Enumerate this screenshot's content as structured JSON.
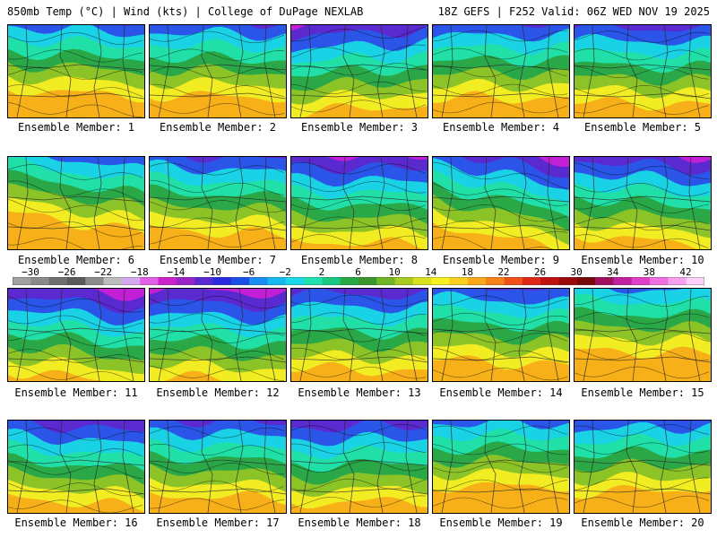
{
  "header": {
    "left": "850mb Temp (°C) | Wind (kts) | College of DuPage NEXLAB",
    "right": "18Z GEFS | F252 Valid: 06Z WED NOV 19 2025"
  },
  "members": [
    {
      "label": "Ensemble Member: 1"
    },
    {
      "label": "Ensemble Member: 2"
    },
    {
      "label": "Ensemble Member: 3"
    },
    {
      "label": "Ensemble Member: 4"
    },
    {
      "label": "Ensemble Member: 5"
    },
    {
      "label": "Ensemble Member: 6"
    },
    {
      "label": "Ensemble Member: 7"
    },
    {
      "label": "Ensemble Member: 8"
    },
    {
      "label": "Ensemble Member: 9"
    },
    {
      "label": "Ensemble Member: 10"
    },
    {
      "label": "Ensemble Member: 11"
    },
    {
      "label": "Ensemble Member: 12"
    },
    {
      "label": "Ensemble Member: 13"
    },
    {
      "label": "Ensemble Member: 14"
    },
    {
      "label": "Ensemble Member: 15"
    },
    {
      "label": "Ensemble Member: 16"
    },
    {
      "label": "Ensemble Member: 17"
    },
    {
      "label": "Ensemble Member: 18"
    },
    {
      "label": "Ensemble Member: 19"
    },
    {
      "label": "Ensemble Member: 20"
    }
  ],
  "colorbar": {
    "labels": [
      "−30",
      "−26",
      "−22",
      "−18",
      "−14",
      "−10",
      "−6",
      "−2",
      "2",
      "6",
      "10",
      "14",
      "18",
      "22",
      "26",
      "30",
      "34",
      "38",
      "42"
    ],
    "colors": [
      "#a0a0a0",
      "#8a8a8a",
      "#6e6e6e",
      "#5a5a5a",
      "#8c8c8c",
      "#bdbdbd",
      "#d6a8f0",
      "#e060e8",
      "#cc22cc",
      "#9a22c8",
      "#5a2ad0",
      "#2a2ae0",
      "#1a50e8",
      "#1a8cf0",
      "#18b8f0",
      "#1ad8e8",
      "#20e0b0",
      "#18c880",
      "#26a842",
      "#3c9630",
      "#70b428",
      "#a8cc20",
      "#d8e020",
      "#f8f020",
      "#f8d020",
      "#f8a818",
      "#f88018",
      "#f05018",
      "#e02818",
      "#c01010",
      "#9a0a0a",
      "#780808",
      "#a01060",
      "#c020a0",
      "#e040c8",
      "#f070e0",
      "#f8a0f0",
      "#fcd0f8"
    ],
    "temp_colors": {
      "deep_cold": "#c21fd6",
      "cold": "#5a2ad0",
      "blue": "#2a55e8",
      "cyan": "#1ad2e6",
      "teal": "#20e0a8",
      "green": "#2aa848",
      "lime": "#8cc428",
      "yellow": "#f2ec22",
      "orange": "#f8b018"
    }
  }
}
